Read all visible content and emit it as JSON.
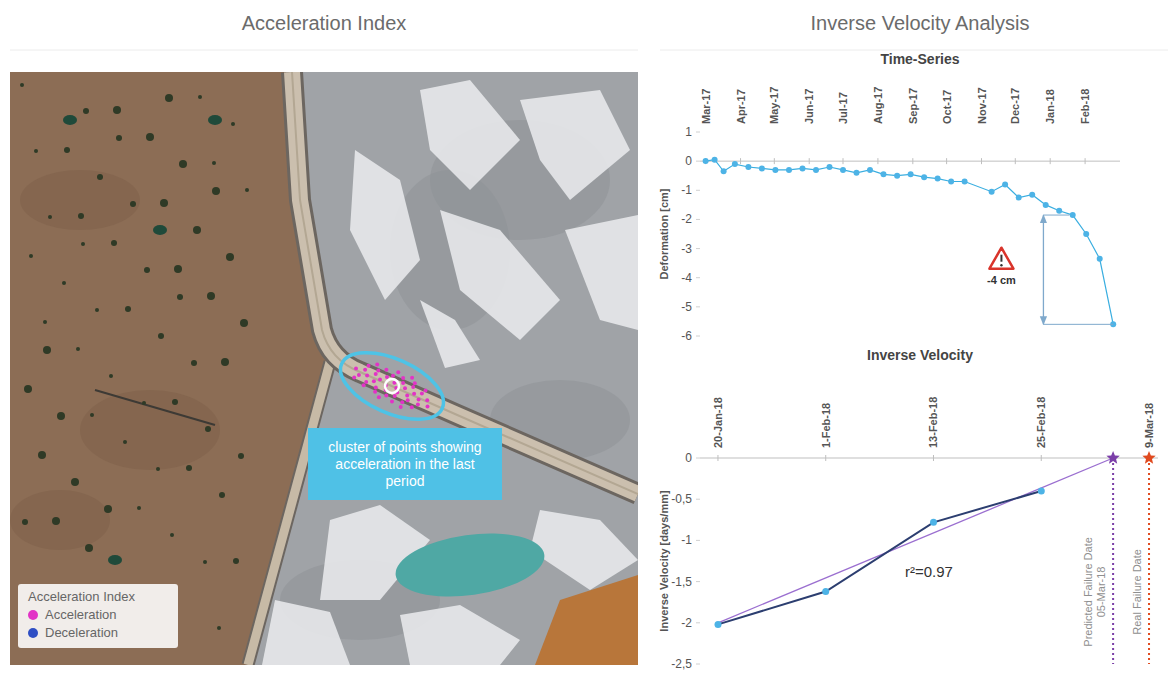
{
  "map": {
    "title": "Acceleration Index",
    "callout": "cluster of points showing acceleration in the last period",
    "legend": {
      "title": "Acceleration Index",
      "items": [
        {
          "name": "Acceleration",
          "color": "#e233c6"
        },
        {
          "name": "Deceleration",
          "color": "#2f4fc4"
        }
      ]
    }
  },
  "header": {
    "title": "Inverse Velocity Analysis"
  },
  "chart_data": [
    {
      "type": "line",
      "title": "Time-Series",
      "y_label": "Deformation [cm]",
      "x": [
        "2017-03-01",
        "2017-03-09",
        "2017-03-17",
        "2017-03-27",
        "2017-04-08",
        "2017-04-20",
        "2017-05-02",
        "2017-05-14",
        "2017-05-26",
        "2017-06-07",
        "2017-06-19",
        "2017-07-01",
        "2017-07-13",
        "2017-07-25",
        "2017-08-06",
        "2017-08-18",
        "2017-08-30",
        "2017-09-11",
        "2017-09-23",
        "2017-10-05",
        "2017-10-17",
        "2017-11-10",
        "2017-11-22",
        "2017-12-04",
        "2017-12-16",
        "2017-12-28",
        "2018-01-09",
        "2018-01-21",
        "2018-02-02",
        "2018-02-14",
        "2018-02-26"
      ],
      "values": [
        0,
        0.05,
        -0.35,
        -0.1,
        -0.2,
        -0.25,
        -0.3,
        -0.3,
        -0.25,
        -0.3,
        -0.2,
        -0.3,
        -0.4,
        -0.3,
        -0.45,
        -0.5,
        -0.45,
        -0.55,
        -0.6,
        -0.7,
        -0.7,
        -1.05,
        -0.8,
        -1.25,
        -1.15,
        -1.5,
        -1.7,
        -1.85,
        -2.5,
        -3.35,
        -5.6
      ],
      "color": "#3aaee0",
      "marker": "circle",
      "grid": false,
      "xlim": [
        "2017-02-24",
        "2018-03-04"
      ],
      "xticks": [
        {
          "value": "2017-03-01",
          "label": "Mar-17"
        },
        {
          "value": "2017-04-01",
          "label": "Apr-17"
        },
        {
          "value": "2017-05-01",
          "label": "May-17"
        },
        {
          "value": "2017-06-01",
          "label": "Jun-17"
        },
        {
          "value": "2017-07-01",
          "label": "Jul-17"
        },
        {
          "value": "2017-08-01",
          "label": "Aug-17"
        },
        {
          "value": "2017-09-01",
          "label": "Sep-17"
        },
        {
          "value": "2017-10-01",
          "label": "Oct-17"
        },
        {
          "value": "2017-11-01",
          "label": "Nov-17"
        },
        {
          "value": "2017-12-01",
          "label": "Dec-17"
        },
        {
          "value": "2018-01-01",
          "label": "Jan-18"
        },
        {
          "value": "2018-02-01",
          "label": "Feb-18"
        }
      ],
      "ylim": [
        -6,
        1
      ],
      "yticks": [
        -6,
        -5,
        -4,
        -3,
        -2,
        -1,
        0,
        1
      ],
      "annotation": {
        "text": "-4 cm",
        "x": "2017-12-26",
        "from": -1.85,
        "to": -5.6
      }
    },
    {
      "type": "line",
      "title": "Inverse Velocity",
      "y_label": "Inverse Velocity [days/mm]",
      "x": [
        "2018-01-20",
        "2018-02-01",
        "2018-02-13",
        "2018-02-25"
      ],
      "values": [
        -2.02,
        -1.62,
        -0.78,
        -0.4
      ],
      "color": "#2c3e70",
      "marker": "circle",
      "grid": false,
      "xlim": [
        "2018-01-18",
        "2018-03-10"
      ],
      "xticks": [
        {
          "value": "2018-01-20",
          "label": "20-Jan-18"
        },
        {
          "value": "2018-02-01",
          "label": "1-Feb-18"
        },
        {
          "value": "2018-02-13",
          "label": "13-Feb-18"
        },
        {
          "value": "2018-02-25",
          "label": "25-Feb-18"
        },
        {
          "value": "2018-03-09",
          "label": "9-Mar-18"
        }
      ],
      "ylim": [
        -2.5,
        0
      ],
      "yticks": [
        0,
        {
          "value": -0.5,
          "label": "-0,5"
        },
        -1,
        {
          "value": -1.5,
          "label": "-1,5"
        },
        -2,
        {
          "value": -2.5,
          "label": "-2,5"
        }
      ],
      "trend": {
        "x": [
          "2018-01-20",
          "2018-03-05"
        ],
        "values": [
          -2.0,
          0
        ],
        "color": "#9b6fd0",
        "label": "r²=0.97"
      },
      "events": [
        {
          "label": "Predicted Failure Date",
          "date_label": "05-Mar-18",
          "x": "2018-03-05",
          "value": 0,
          "color": "#7b3fa8"
        },
        {
          "label": "Real Failure Date",
          "x": "2018-03-09",
          "value": 0,
          "color": "#e04a1f"
        }
      ]
    }
  ]
}
